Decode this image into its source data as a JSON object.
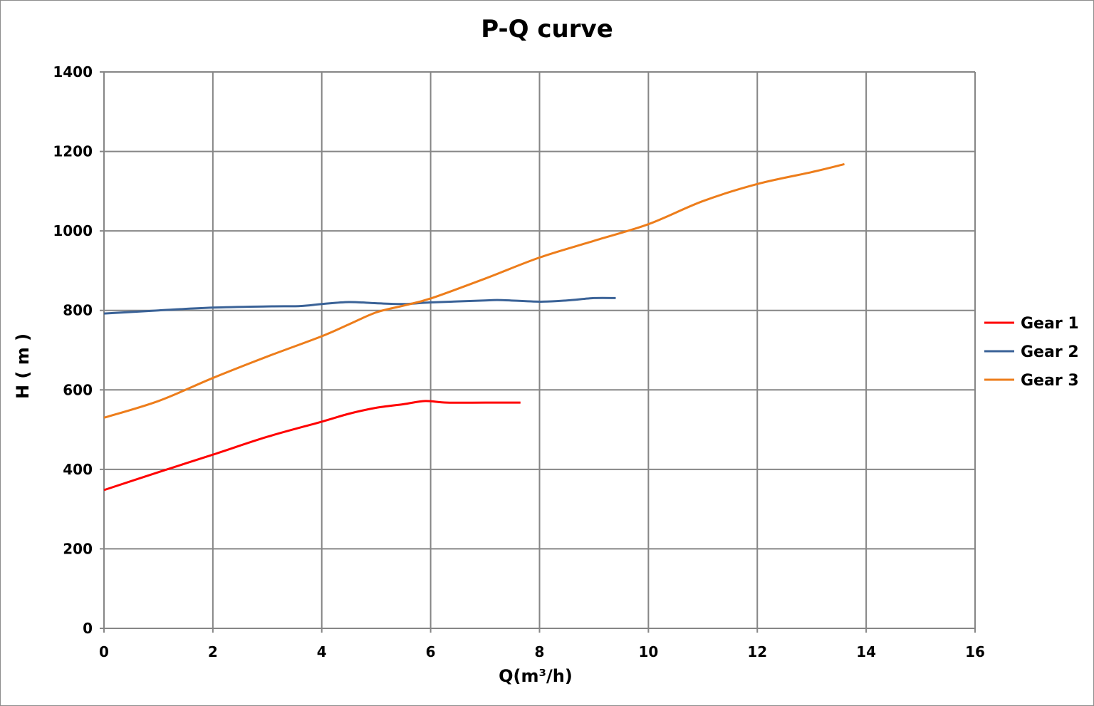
{
  "chart_data": {
    "type": "line",
    "title": "P-Q  curve",
    "xlabel": "Q(m³/h)",
    "ylabel": "H ( m )",
    "xlim": [
      0,
      16
    ],
    "ylim": [
      0,
      1400
    ],
    "xticks": [
      0,
      2,
      4,
      6,
      8,
      10,
      12,
      14,
      16
    ],
    "yticks": [
      0,
      200,
      400,
      600,
      800,
      1000,
      1200,
      1400
    ],
    "grid": true,
    "legend_position": "right",
    "series": [
      {
        "name": "Gear 1",
        "color": "#ff0000",
        "x": [
          0,
          1,
          2,
          3,
          4,
          4.5,
          5,
          5.5,
          5.9,
          6.3,
          7,
          7.65
        ],
        "y": [
          348,
          393,
          437,
          482,
          520,
          540,
          555,
          564,
          572,
          568,
          568,
          568
        ]
      },
      {
        "name": "Gear 2",
        "color": "#3a6297",
        "x": [
          0,
          1,
          2,
          3,
          3.6,
          4,
          4.5,
          5,
          5.5,
          6,
          7,
          7.3,
          8,
          8.5,
          9,
          9.4
        ],
        "y": [
          792,
          800,
          807,
          810,
          811,
          816,
          821,
          818,
          816,
          820,
          825,
          826,
          822,
          825,
          831,
          831
        ]
      },
      {
        "name": "Gear 3",
        "color": "#ed7d1b",
        "x": [
          0,
          1,
          2,
          3,
          4,
          4.5,
          5,
          5.5,
          6,
          7,
          8,
          9,
          10,
          11,
          12,
          13,
          13.6
        ],
        "y": [
          530,
          572,
          630,
          684,
          735,
          765,
          795,
          812,
          830,
          880,
          933,
          975,
          1017,
          1075,
          1118,
          1148,
          1168
        ]
      }
    ]
  }
}
